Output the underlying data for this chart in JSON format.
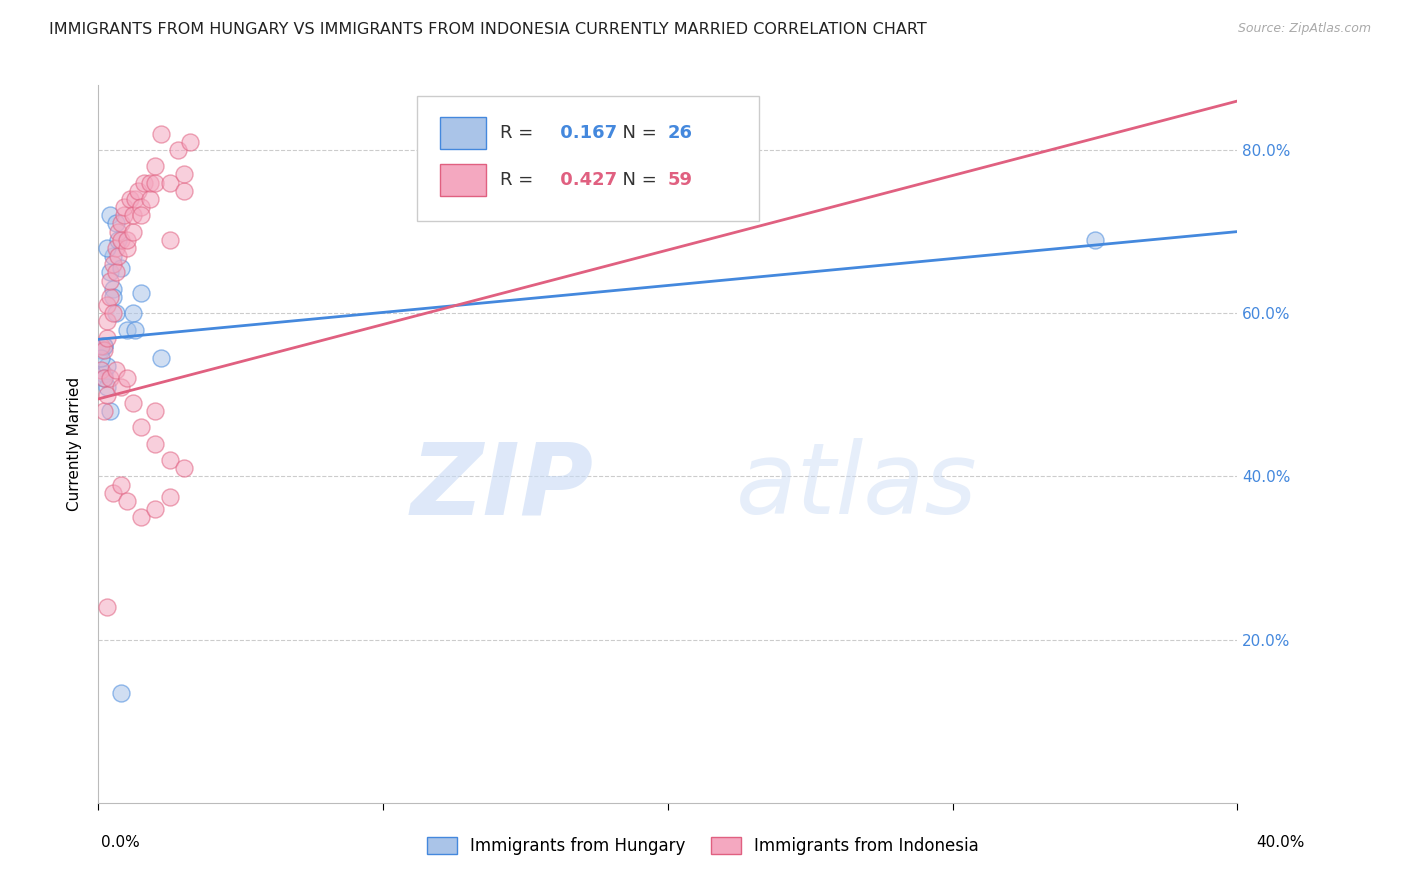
{
  "title": "IMMIGRANTS FROM HUNGARY VS IMMIGRANTS FROM INDONESIA CURRENTLY MARRIED CORRELATION CHART",
  "source": "Source: ZipAtlas.com",
  "ylabel": "Currently Married",
  "xmin": 0.0,
  "xmax": 0.4,
  "ymin": 0.0,
  "ymax": 0.88,
  "yticks": [
    0.2,
    0.4,
    0.6,
    0.8
  ],
  "xticks": [
    0.0,
    0.1,
    0.2,
    0.3,
    0.4
  ],
  "hungary_R": 0.167,
  "hungary_N": 26,
  "indonesia_R": 0.427,
  "indonesia_N": 59,
  "hungary_color": "#aac4e8",
  "indonesia_color": "#f4a8c0",
  "hungary_line_color": "#4488dd",
  "indonesia_line_color": "#e06080",
  "hungary_line": {
    "x0": 0.0,
    "y0": 0.568,
    "x1": 0.4,
    "y1": 0.7
  },
  "indonesia_line": {
    "x0": 0.0,
    "y0": 0.495,
    "x1": 0.4,
    "y1": 0.86
  },
  "hungary_scatter": {
    "x": [
      0.001,
      0.002,
      0.003,
      0.002,
      0.004,
      0.005,
      0.003,
      0.004,
      0.006,
      0.005,
      0.007,
      0.008,
      0.006,
      0.01,
      0.012,
      0.015,
      0.003,
      0.004,
      0.013,
      0.002,
      0.022,
      0.35,
      0.001,
      0.002,
      0.005,
      0.008
    ],
    "y": [
      0.555,
      0.525,
      0.51,
      0.56,
      0.65,
      0.67,
      0.68,
      0.72,
      0.71,
      0.63,
      0.69,
      0.655,
      0.6,
      0.58,
      0.6,
      0.625,
      0.535,
      0.48,
      0.58,
      0.56,
      0.545,
      0.69,
      0.545,
      0.52,
      0.62,
      0.135
    ]
  },
  "indonesia_scatter": {
    "x": [
      0.001,
      0.001,
      0.002,
      0.002,
      0.003,
      0.003,
      0.003,
      0.004,
      0.004,
      0.005,
      0.005,
      0.006,
      0.006,
      0.007,
      0.007,
      0.008,
      0.008,
      0.009,
      0.009,
      0.01,
      0.01,
      0.011,
      0.012,
      0.012,
      0.013,
      0.014,
      0.015,
      0.015,
      0.016,
      0.018,
      0.018,
      0.02,
      0.02,
      0.022,
      0.025,
      0.025,
      0.028,
      0.03,
      0.03,
      0.032,
      0.002,
      0.003,
      0.004,
      0.006,
      0.008,
      0.012,
      0.015,
      0.02,
      0.025,
      0.03,
      0.005,
      0.008,
      0.01,
      0.015,
      0.02,
      0.025,
      0.003,
      0.01,
      0.02
    ],
    "y": [
      0.56,
      0.53,
      0.52,
      0.555,
      0.57,
      0.59,
      0.61,
      0.62,
      0.64,
      0.6,
      0.66,
      0.65,
      0.68,
      0.67,
      0.7,
      0.69,
      0.71,
      0.72,
      0.73,
      0.68,
      0.69,
      0.74,
      0.7,
      0.72,
      0.74,
      0.75,
      0.73,
      0.72,
      0.76,
      0.74,
      0.76,
      0.76,
      0.78,
      0.82,
      0.69,
      0.76,
      0.8,
      0.75,
      0.77,
      0.81,
      0.48,
      0.5,
      0.52,
      0.53,
      0.51,
      0.49,
      0.46,
      0.44,
      0.42,
      0.41,
      0.38,
      0.39,
      0.37,
      0.35,
      0.36,
      0.375,
      0.24,
      0.52,
      0.48
    ]
  },
  "watermark_zip": "ZIP",
  "watermark_atlas": "atlas",
  "title_fontsize": 11.5,
  "axis_label_fontsize": 11,
  "tick_fontsize": 11,
  "right_axis_color": "#4488dd",
  "background_color": "#ffffff",
  "grid_color": "#cccccc",
  "legend_fontsize": 13
}
